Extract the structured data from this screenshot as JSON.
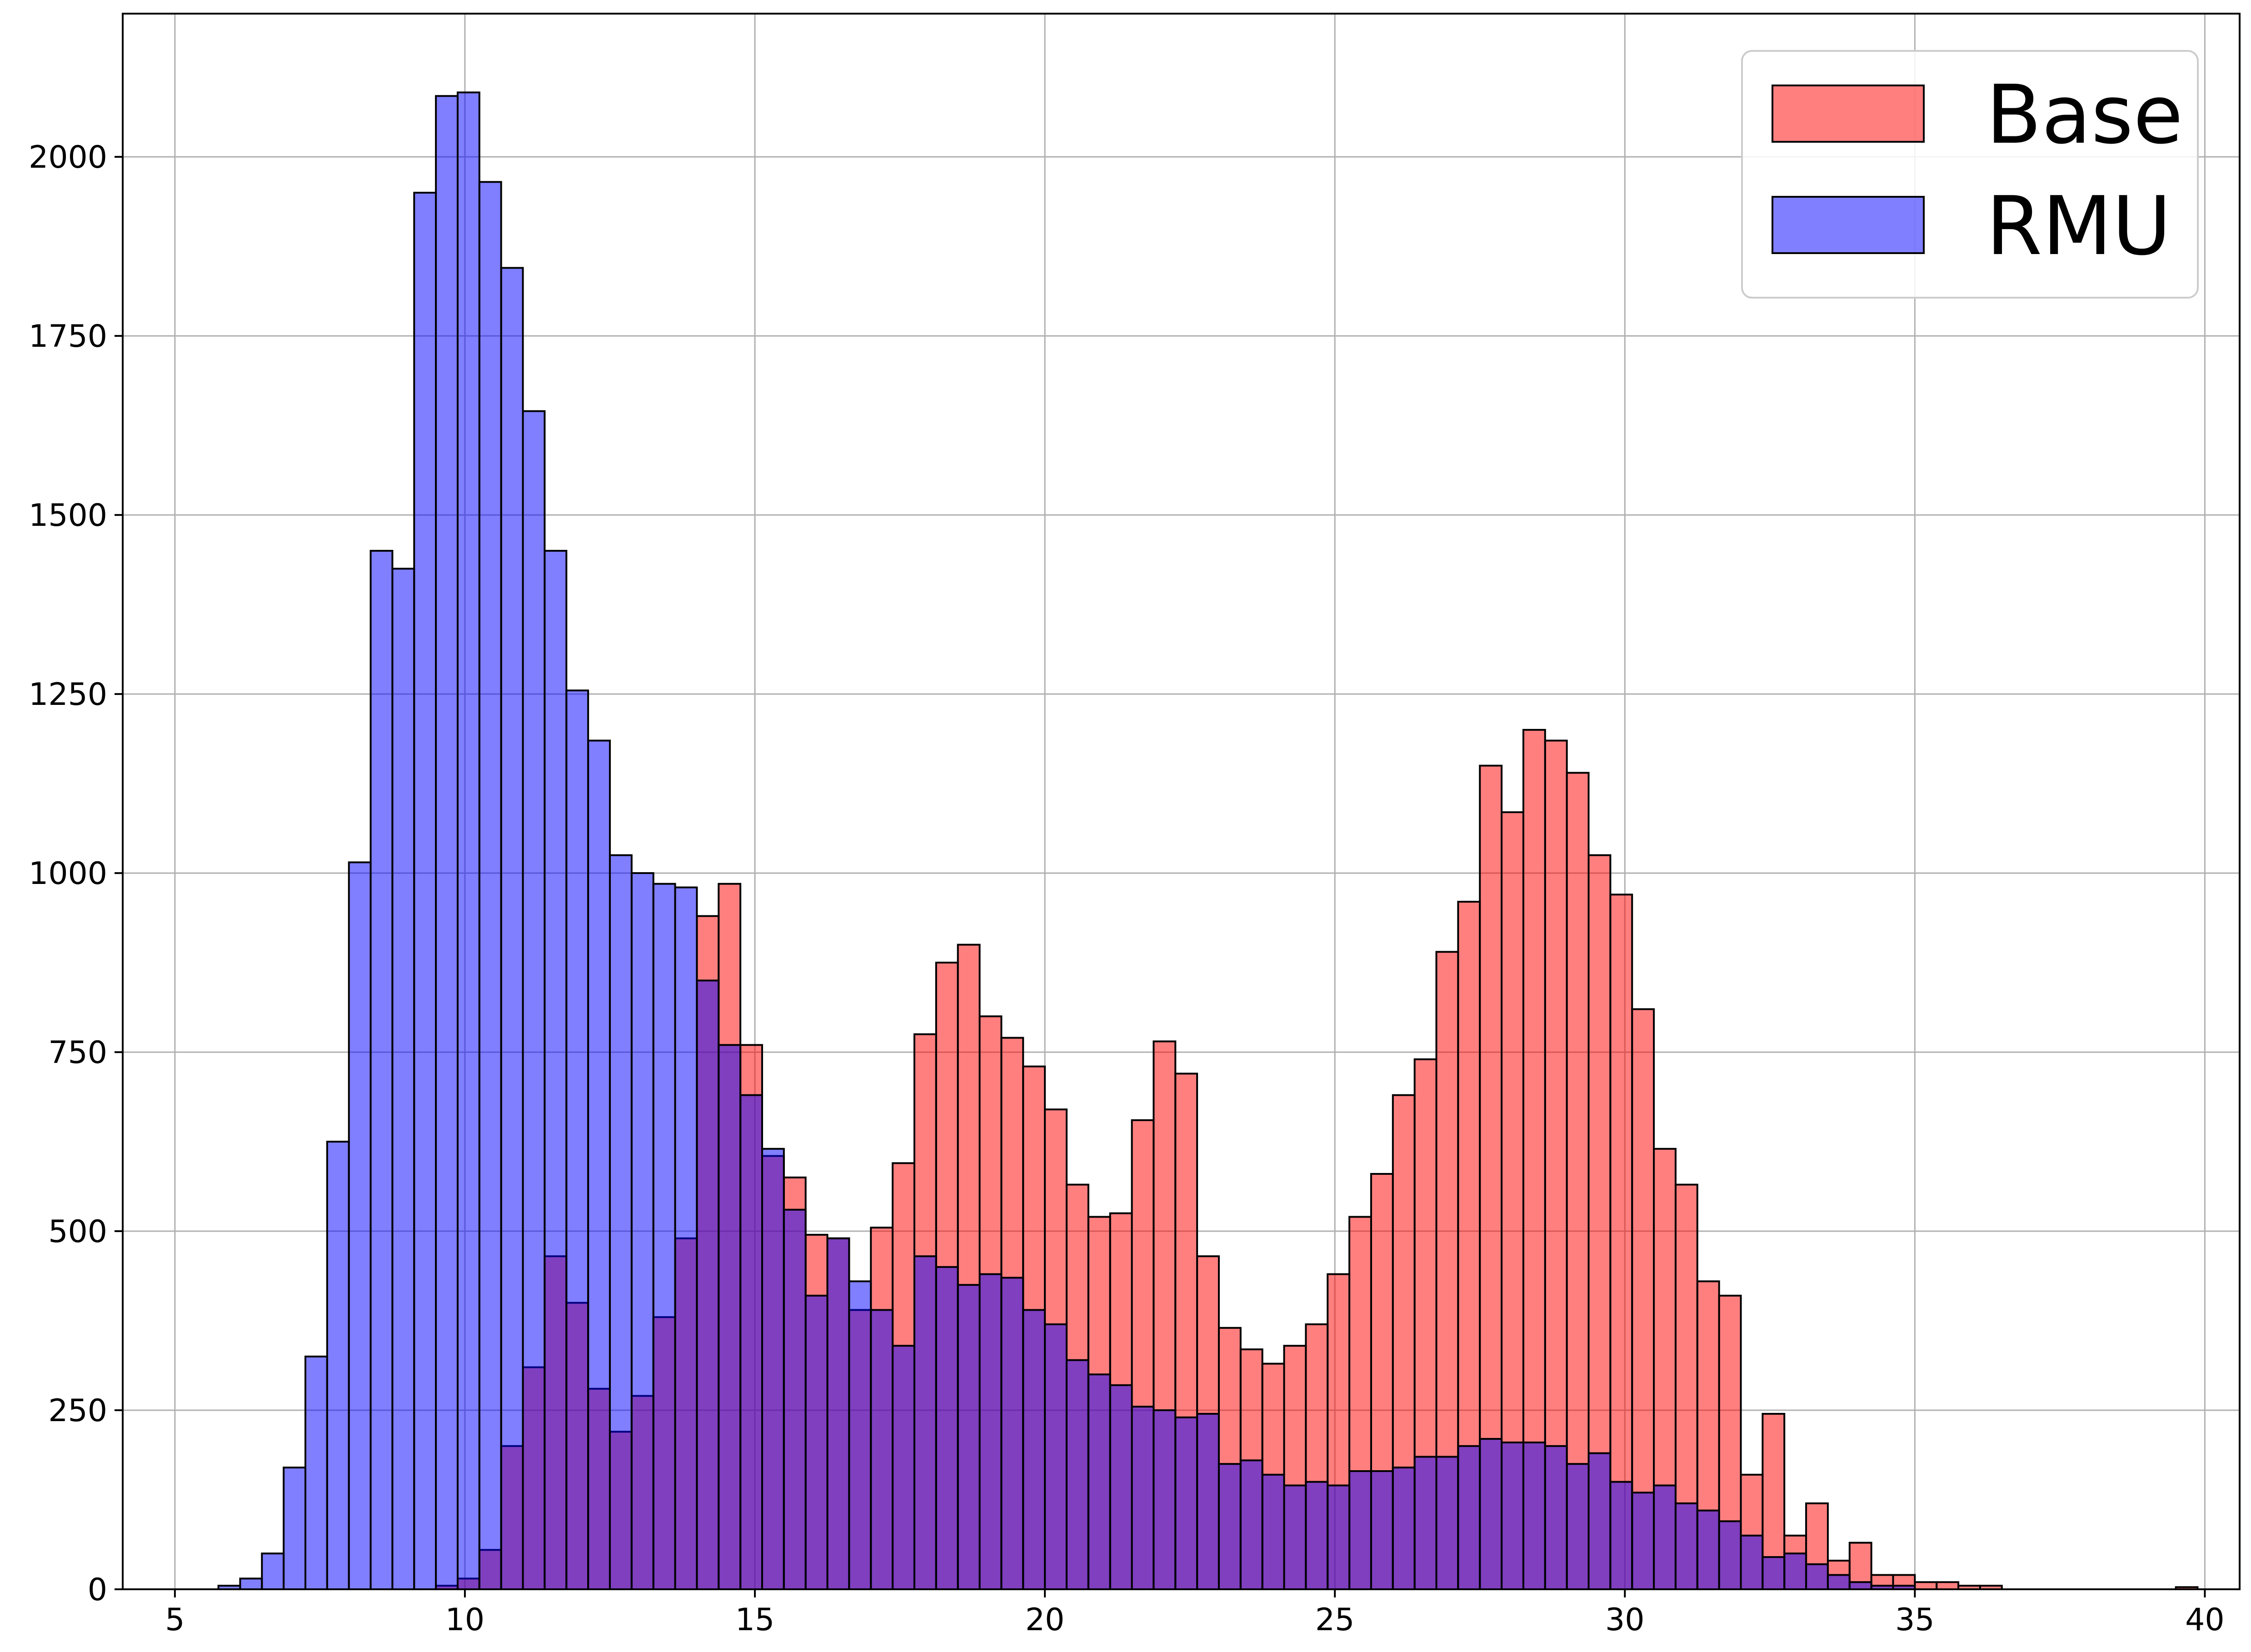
{
  "chart_data": {
    "type": "bar",
    "title": "",
    "xlabel": "",
    "ylabel": "",
    "xlim": [
      4.1,
      40.6
    ],
    "ylim": [
      0,
      2200
    ],
    "grid": true,
    "legend": "top-right",
    "bin_width": 0.375,
    "bin_start": 5.75,
    "xticks": [
      5,
      10,
      15,
      20,
      25,
      30,
      35,
      40
    ],
    "yticks": [
      0,
      250,
      500,
      750,
      1000,
      1250,
      1500,
      1750,
      2000
    ],
    "series": [
      {
        "name": "Base",
        "color": "#ff0000",
        "opacity": 0.5,
        "values": [
          0,
          0,
          0,
          0,
          0,
          0,
          0,
          0,
          0,
          0,
          5,
          15,
          55,
          200,
          310,
          465,
          400,
          280,
          220,
          270,
          380,
          490,
          940,
          985,
          760,
          605,
          575,
          495,
          490,
          390,
          505,
          595,
          775,
          875,
          900,
          800,
          770,
          730,
          670,
          565,
          520,
          525,
          655,
          765,
          720,
          465,
          365,
          335,
          315,
          340,
          370,
          440,
          520,
          580,
          690,
          740,
          890,
          960,
          1150,
          1085,
          1200,
          1185,
          1140,
          1025,
          970,
          810,
          615,
          565,
          430,
          410,
          160,
          245,
          75,
          120,
          40,
          65,
          20,
          20,
          10,
          10,
          5,
          5,
          0,
          0,
          0,
          0,
          0,
          0,
          0,
          0,
          3
        ]
      },
      {
        "name": "RMU",
        "color": "#0000ff",
        "opacity": 0.5,
        "values": [
          5,
          15,
          50,
          170,
          325,
          625,
          1015,
          1450,
          1425,
          1950,
          2085,
          2090,
          1965,
          1845,
          1645,
          1450,
          1255,
          1185,
          1025,
          1000,
          985,
          980,
          850,
          760,
          690,
          615,
          530,
          410,
          490,
          430,
          390,
          340,
          465,
          450,
          425,
          440,
          435,
          390,
          370,
          320,
          300,
          285,
          255,
          250,
          240,
          245,
          175,
          180,
          160,
          145,
          150,
          145,
          165,
          165,
          170,
          185,
          185,
          200,
          210,
          205,
          205,
          200,
          175,
          190,
          150,
          135,
          145,
          120,
          110,
          95,
          75,
          45,
          50,
          35,
          20,
          10,
          5,
          5,
          0,
          0,
          0,
          0,
          0,
          0,
          0,
          0,
          0,
          0,
          0,
          0,
          0
        ]
      }
    ]
  }
}
